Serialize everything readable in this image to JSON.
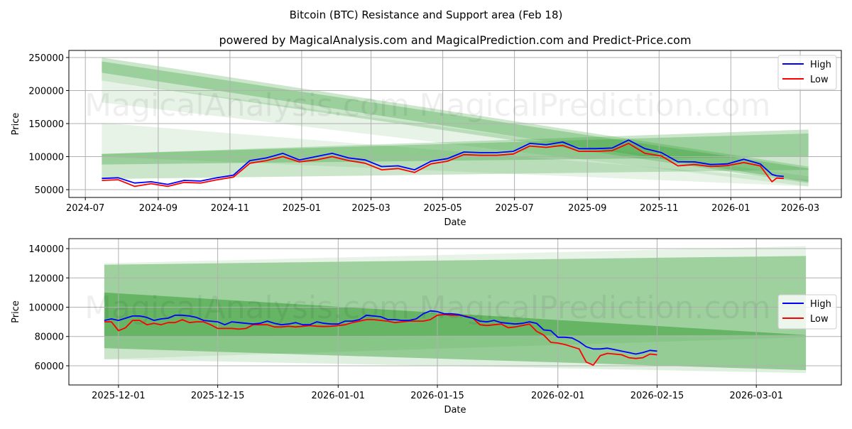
{
  "title": "Bitcoin (BTC) Resistance and Support area (Feb 18)",
  "subtitle": "powered by MagicalAnalysis.com and MagicalPrediction.com and Predict-Price.com",
  "watermarks": [
    "MagicalAnalysis.com",
    "MagicalPrediction.com"
  ],
  "colors": {
    "high": "#0000ff",
    "low": "#ff0000",
    "band": "#2e9b2e",
    "grid": "#b0b0b0"
  },
  "chart_data": [
    {
      "type": "line",
      "xlabel": "Date",
      "ylabel": "Price",
      "xlim": [
        "2024-06-17",
        "2026-04-05"
      ],
      "ylim": [
        38200,
        260700
      ],
      "xticks": [
        "2024-07",
        "2024-09",
        "2024-11",
        "2025-01",
        "2025-03",
        "2025-05",
        "2025-07",
        "2025-09",
        "2025-11",
        "2026-01",
        "2026-03"
      ],
      "xtick_dates": [
        "2024-07-01",
        "2024-09-01",
        "2024-11-01",
        "2025-01-01",
        "2025-03-01",
        "2025-05-01",
        "2025-07-01",
        "2025-09-01",
        "2025-11-01",
        "2026-01-01",
        "2026-03-01"
      ],
      "yticks": [
        50000,
        100000,
        150000,
        200000,
        250000
      ],
      "grid": true,
      "legend": {
        "position": "top-right",
        "entries": [
          "High",
          "Low"
        ]
      },
      "dates": [
        "2024-07-15",
        "2024-07-29",
        "2024-08-12",
        "2024-08-26",
        "2024-09-09",
        "2024-09-23",
        "2024-10-07",
        "2024-10-21",
        "2024-11-04",
        "2024-11-18",
        "2024-12-02",
        "2024-12-16",
        "2024-12-30",
        "2025-01-13",
        "2025-01-27",
        "2025-02-10",
        "2025-02-24",
        "2025-03-10",
        "2025-03-24",
        "2025-04-07",
        "2025-04-21",
        "2025-05-05",
        "2025-05-19",
        "2025-06-02",
        "2025-06-16",
        "2025-06-30",
        "2025-07-14",
        "2025-07-28",
        "2025-08-11",
        "2025-08-25",
        "2025-09-08",
        "2025-09-22",
        "2025-10-06",
        "2025-10-20",
        "2025-11-03",
        "2025-11-17",
        "2025-12-01",
        "2025-12-15",
        "2025-12-29",
        "2026-01-12",
        "2026-01-26",
        "2026-02-05",
        "2026-02-09",
        "2026-02-15"
      ],
      "series": [
        {
          "name": "High",
          "values": [
            67000,
            68000,
            60000,
            62000,
            58000,
            64000,
            63000,
            68000,
            72000,
            94000,
            98000,
            105000,
            95000,
            100000,
            105000,
            98000,
            95000,
            85000,
            86000,
            80000,
            93000,
            97000,
            107000,
            106000,
            106000,
            108000,
            120000,
            118000,
            122000,
            112000,
            112000,
            113000,
            125000,
            112000,
            106000,
            92000,
            92000,
            88000,
            89000,
            96000,
            89000,
            73000,
            71000,
            70000
          ]
        },
        {
          "name": "Low",
          "values": [
            64000,
            65000,
            55000,
            59000,
            55000,
            61000,
            60000,
            65000,
            69000,
            90000,
            94000,
            100000,
            92000,
            95000,
            100000,
            94000,
            90000,
            80000,
            82000,
            76000,
            89000,
            93000,
            103000,
            102000,
            102000,
            104000,
            116000,
            114000,
            117000,
            108000,
            108000,
            109000,
            120000,
            105000,
            101000,
            86000,
            88000,
            85000,
            86500,
            91000,
            86000,
            62000,
            67500,
            67000
          ]
        }
      ],
      "bands": [
        {
          "start_date": "2024-07-15",
          "end_date": "2026-03-08",
          "start": [
            250000,
            215000
          ],
          "end": [
            85000,
            60000
          ],
          "alpha": 0.25
        },
        {
          "start_date": "2024-07-15",
          "end_date": "2026-03-08",
          "start": [
            244000,
            227000
          ],
          "end": [
            82000,
            62000
          ],
          "alpha": 0.3
        },
        {
          "start_date": "2024-07-15",
          "end_date": "2026-03-08",
          "start": [
            215000,
            182000
          ],
          "end": [
            70000,
            55000
          ],
          "alpha": 0.12
        },
        {
          "start_date": "2024-07-15",
          "end_date": "2026-03-08",
          "start": [
            151000,
            100000
          ],
          "end": [
            65000,
            55000
          ],
          "alpha": 0.12
        },
        {
          "start_date": "2024-07-15",
          "end_date": "2026-03-08",
          "start": [
            104000,
            66000
          ],
          "end": [
            141000,
            80000
          ],
          "alpha": 0.25
        },
        {
          "start_date": "2024-07-15",
          "end_date": "2026-03-08",
          "start": [
            104000,
            88000
          ],
          "end": [
            135000,
            100000
          ],
          "alpha": 0.3
        }
      ]
    },
    {
      "type": "line",
      "xlabel": "Date",
      "ylabel": "Price",
      "xlim": [
        "2025-11-24",
        "2026-03-13"
      ],
      "ylim": [
        46900,
        146800
      ],
      "xticks": [
        "2025-12-01",
        "2025-12-15",
        "2026-01-01",
        "2026-01-15",
        "2026-02-01",
        "2026-02-15",
        "2026-03-01"
      ],
      "yticks": [
        60000,
        80000,
        100000,
        120000,
        140000
      ],
      "grid": true,
      "legend": {
        "position": "center-right",
        "entries": [
          "High",
          "Low"
        ]
      },
      "start_date": "2025-11-29",
      "series": [
        {
          "name": "High",
          "values": [
            91000,
            92000,
            91000,
            92500,
            94000,
            94000,
            93000,
            91000,
            92000,
            92500,
            94500,
            94500,
            94000,
            93000,
            91000,
            90500,
            90000,
            88000,
            90000,
            89500,
            89000,
            88500,
            89000,
            90500,
            89000,
            88000,
            88500,
            89500,
            88000,
            88000,
            90000,
            89000,
            88500,
            88500,
            90500,
            90500,
            91500,
            94500,
            94000,
            93500,
            91500,
            91500,
            91000,
            91000,
            92000,
            95500,
            97500,
            97000,
            95500,
            95500,
            95000,
            93500,
            92500,
            90500,
            90000,
            91000,
            89500,
            89000,
            88500,
            89000,
            90000,
            89000,
            84500,
            84000,
            79500,
            79500,
            79000,
            76500,
            73000,
            71500,
            71500,
            72000,
            71000,
            70000,
            69000,
            68000,
            69000,
            70500,
            70000
          ]
        },
        {
          "name": "Low",
          "values": [
            90000,
            90000,
            84000,
            86000,
            91000,
            91000,
            88000,
            89000,
            88000,
            89500,
            89500,
            91500,
            89500,
            90000,
            90000,
            88000,
            85500,
            85500,
            85500,
            85000,
            85500,
            88000,
            88000,
            88000,
            86500,
            86500,
            87000,
            86500,
            87000,
            87500,
            87000,
            86800,
            87000,
            87500,
            88000,
            89500,
            90500,
            91500,
            91500,
            91000,
            90500,
            89500,
            90000,
            90500,
            90500,
            90500,
            91500,
            94500,
            95000,
            94500,
            94500,
            94000,
            92500,
            88000,
            87500,
            88000,
            88500,
            86000,
            86500,
            87500,
            88500,
            83500,
            81000,
            76000,
            75500,
            74500,
            73000,
            71500,
            62500,
            60500,
            67000,
            68500,
            68000,
            67500,
            65500,
            65000,
            65500,
            68000,
            67500
          ]
        }
      ],
      "bands": [
        {
          "start_date": "2025-11-29",
          "end_date": "2026-03-08",
          "start": [
            130000,
            64500
          ],
          "end": [
            141700,
            79500
          ],
          "alpha": 0.12
        },
        {
          "start_date": "2025-11-29",
          "end_date": "2026-03-08",
          "start": [
            129000,
            80000
          ],
          "end": [
            135000,
            81000
          ],
          "alpha": 0.38
        },
        {
          "start_date": "2025-11-29",
          "end_date": "2026-03-08",
          "start": [
            110000,
            72000
          ],
          "end": [
            81000,
            57000
          ],
          "alpha": 0.42
        },
        {
          "start_date": "2025-11-29",
          "end_date": "2026-03-08",
          "start": [
            110000,
            64500
          ],
          "end": [
            81000,
            55000
          ],
          "alpha": 0.15
        }
      ]
    }
  ]
}
